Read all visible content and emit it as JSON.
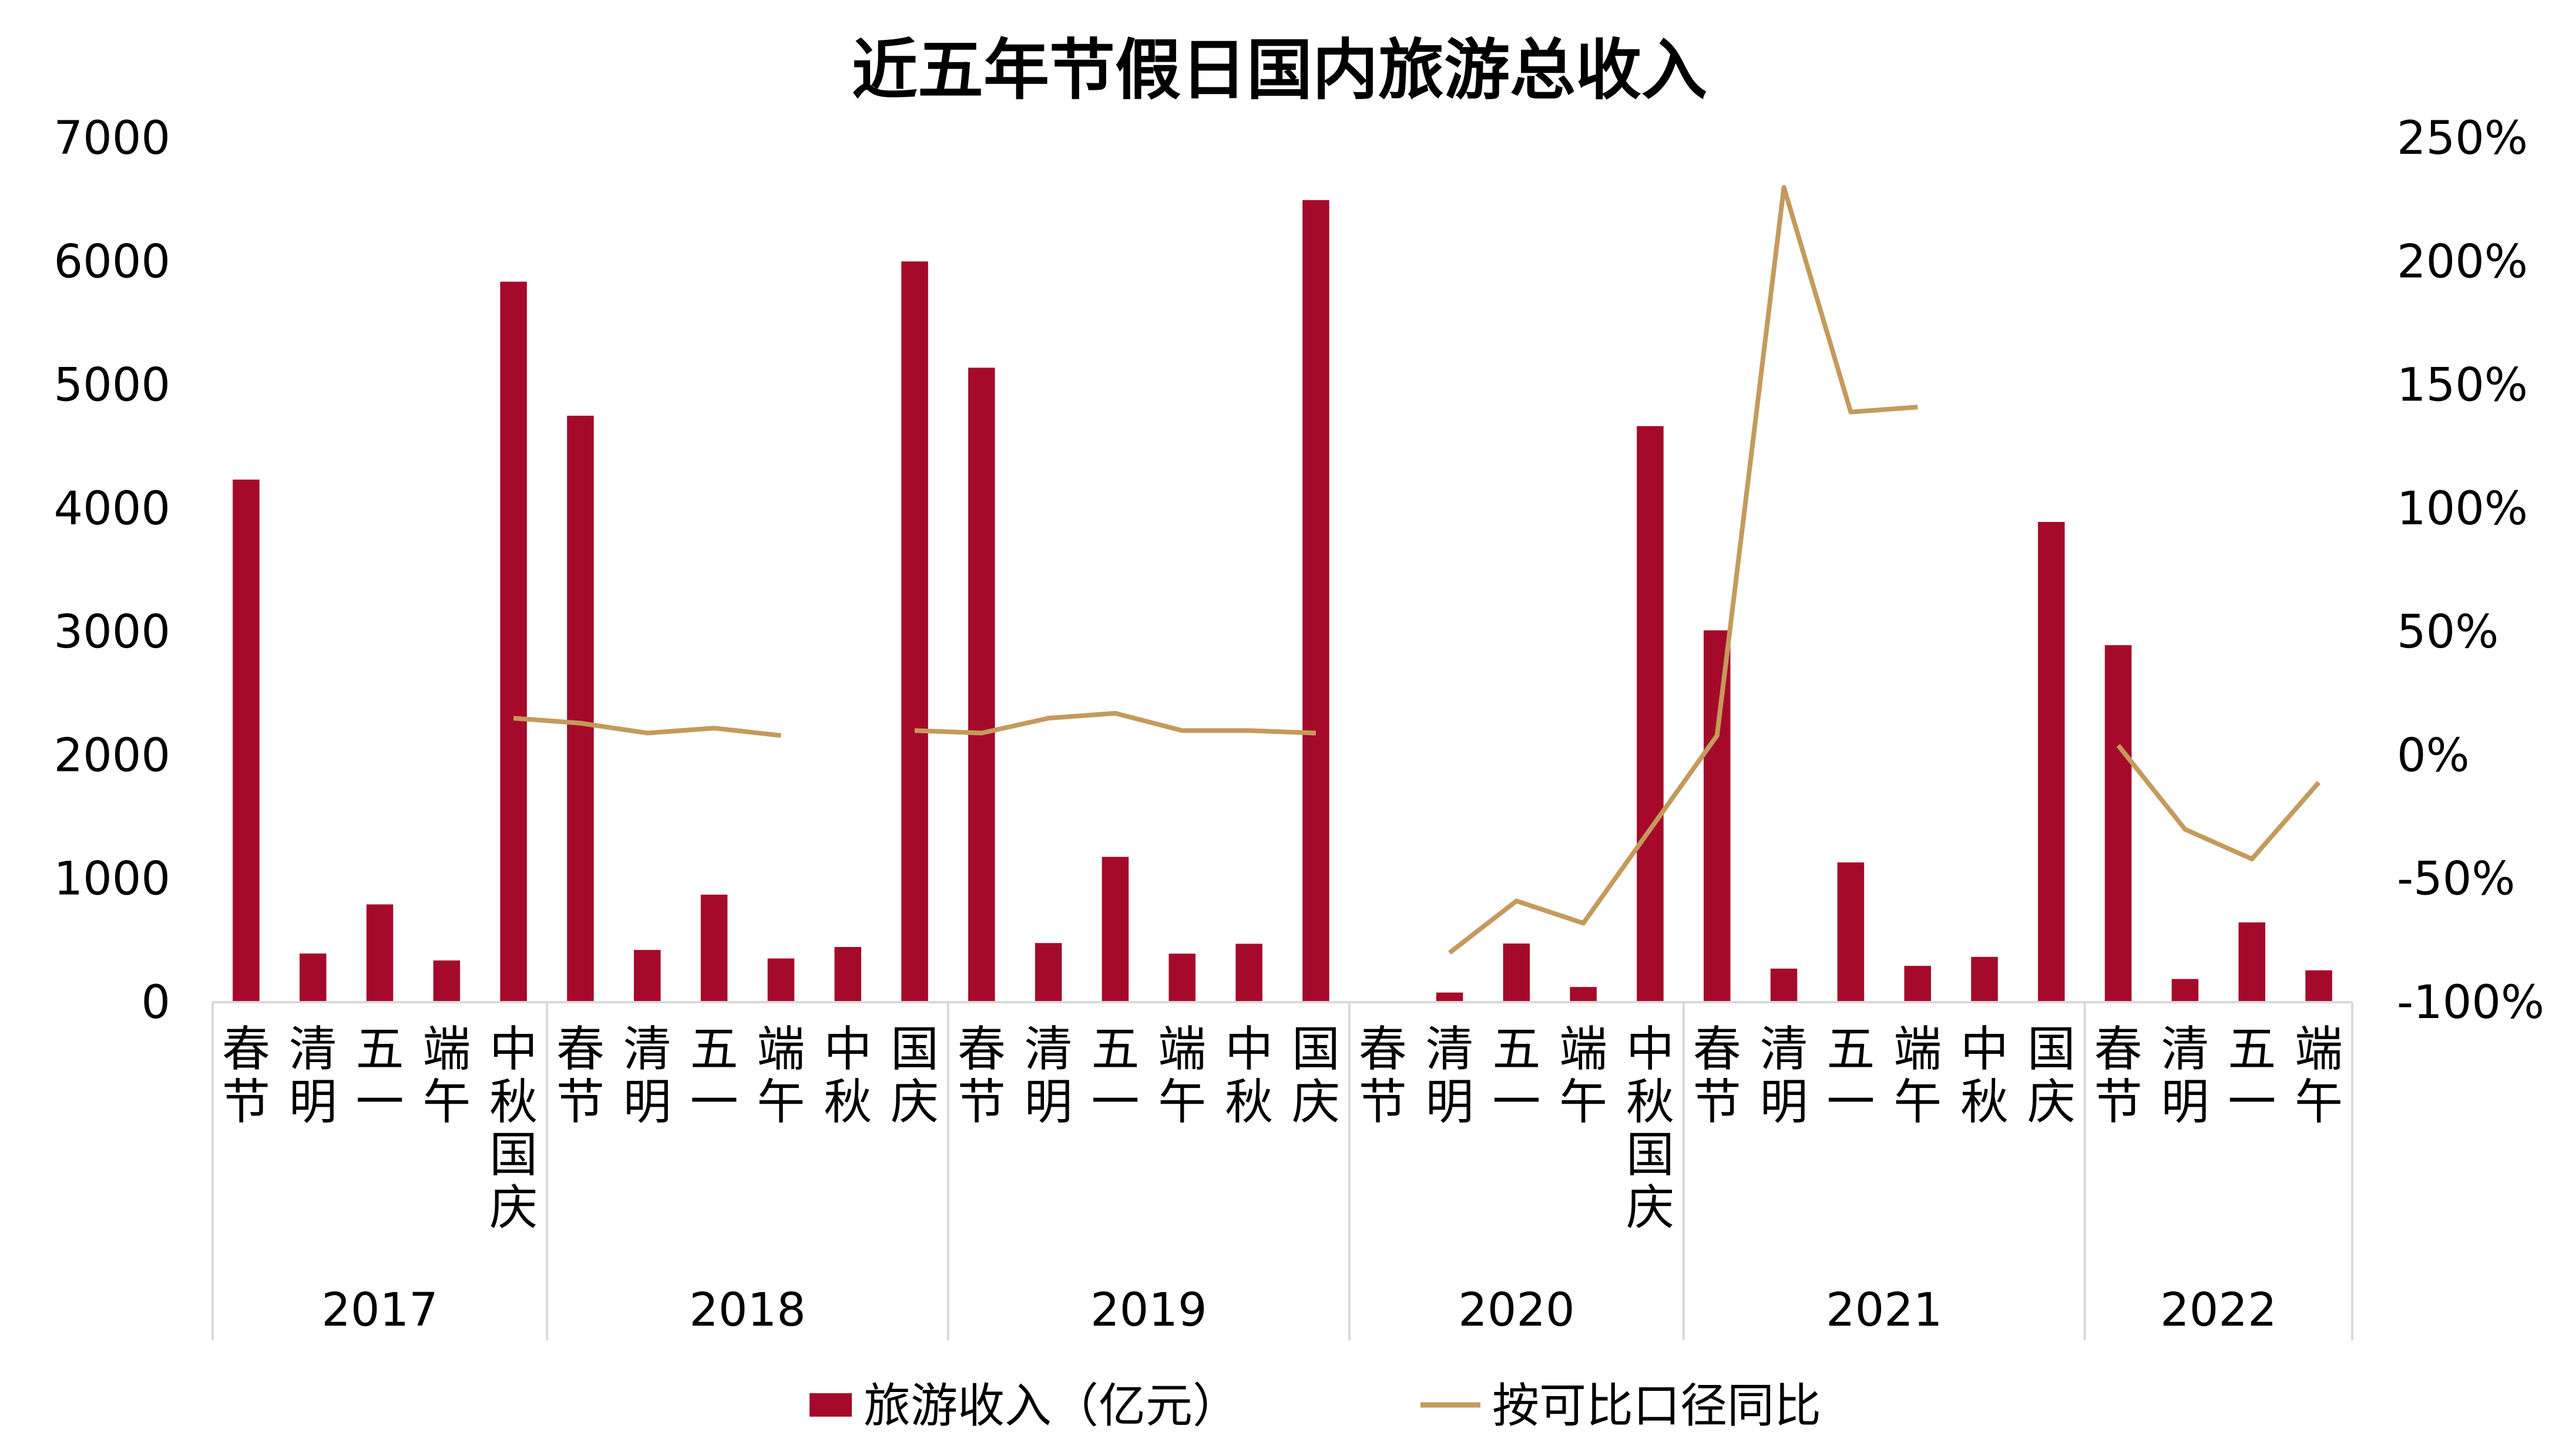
{
  "chart_data": {
    "type": "bar",
    "title": "近五年节假日国内旅游总收入",
    "xlabel": "",
    "ylabel": "",
    "ylim": [
      0,
      7000
    ],
    "y_ticks": [
      "7000",
      "6000",
      "5000",
      "4000",
      "3000",
      "2000",
      "1000",
      "0"
    ],
    "y2lim": [
      -100,
      250
    ],
    "y2_ticks": [
      "250%",
      "200%",
      "150%",
      "100%",
      "50%",
      "0%",
      "-50%",
      "-100%"
    ],
    "grid": false,
    "legend_position": "bottom",
    "colors": {
      "bar": "#A50A2A",
      "line": "#C49A5C",
      "axis": "#D9D9D9"
    },
    "categories": [
      "春节",
      "清明",
      "五一",
      "端午",
      "中秋国庆",
      "春节",
      "清明",
      "五一",
      "端午",
      "中秋",
      "国庆",
      "春节",
      "清明",
      "五一",
      "端午",
      "中秋",
      "国庆",
      "春节",
      "清明",
      "五一",
      "端午",
      "中秋国庆",
      "春节",
      "清明",
      "五一",
      "端午",
      "中秋",
      "国庆",
      "春节",
      "清明",
      "五一",
      "端午"
    ],
    "year_groups": [
      {
        "label": "2017",
        "count": 5
      },
      {
        "label": "2018",
        "count": 6
      },
      {
        "label": "2019",
        "count": 6
      },
      {
        "label": "2020",
        "count": 5
      },
      {
        "label": "2021",
        "count": 6
      },
      {
        "label": "2022",
        "count": 4
      }
    ],
    "series": [
      {
        "name": "旅游收入（亿元）",
        "type": "bar",
        "axis": "left",
        "values": [
          4233,
          394,
          792,
          338,
          5836,
          4750,
          423,
          871,
          354,
          447,
          6000,
          5139,
          479,
          1177,
          393,
          473,
          6497,
          0,
          78,
          475,
          123,
          4666,
          3012,
          272,
          1132,
          294,
          367,
          3890,
          2892,
          188,
          646,
          258
        ]
      },
      {
        "name": "按可比口径同比",
        "type": "line",
        "axis": "right",
        "values": [
          null,
          null,
          null,
          null,
          15,
          13,
          9,
          11,
          8,
          null,
          10,
          9,
          15,
          17,
          10,
          10,
          9,
          null,
          -80,
          -59,
          -68,
          -30,
          8,
          230,
          139,
          141,
          null,
          null,
          4,
          -30,
          -42,
          -11
        ]
      }
    ]
  }
}
